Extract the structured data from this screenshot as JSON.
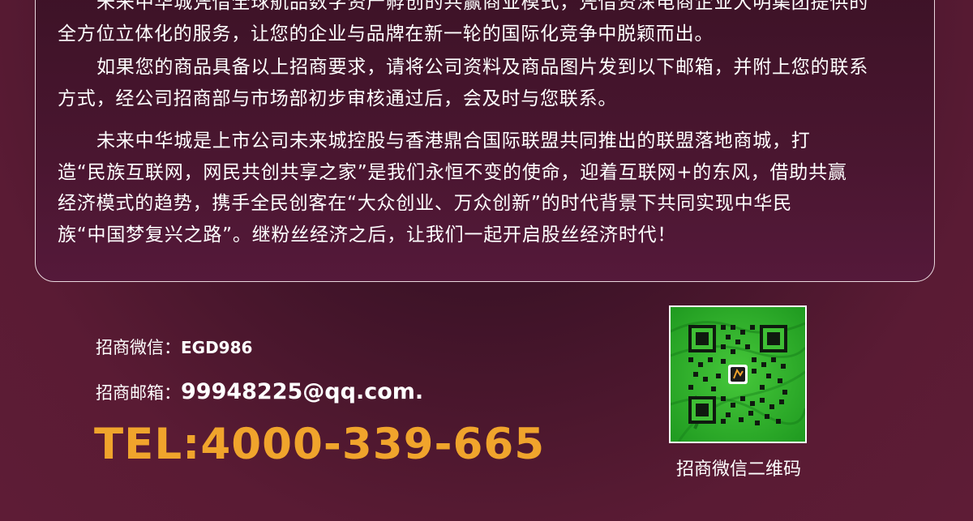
{
  "intro": {
    "paragraph1_line1": "未来中华城凭借全球航品数字资产孵创的共赢商业模式，凭借资深电商企业大明集团提供的",
    "paragraph1_line2": "全方位立体化的服务，让您的企业与品牌在新一轮的国际化竞争中脱颖而出。",
    "paragraph2_line1": "如果您的商品具备以上招商要求，请将公司资料及商品图片发到以下邮箱，并附上您的联系",
    "paragraph2_line2": "方式，经公司招商部与市场部初步审核通过后，会及时与您联系。",
    "paragraph3_line1": "未来中华城是上市公司未来城控股与香港鼎合国际联盟共同推出的联盟落地商城，打",
    "paragraph3_line2": "造“民族互联网，网民共创共享之家”是我们永恒不变的使命，迎着互联网+的东风，借助共赢",
    "paragraph3_line3": "经济模式的趋势，携手全民创客在“大众创业、万众创新”的时代背景下共同实现中华民",
    "paragraph3_line4": "族“中国梦复兴之路”。继粉丝经济之后，让我们一起开启股丝经济时代！"
  },
  "contact": {
    "wechat_label": "招商微信：",
    "wechat_value": "EGD986",
    "email_label": "招商邮箱：",
    "email_value": "99948225@qq.com.",
    "tel": "TEL:4000-339-665"
  },
  "qr": {
    "caption": "招商微信二维码"
  },
  "colors": {
    "accent": "#f0a42c",
    "qr_green": "#2fb52a",
    "background": "#5a1b34"
  }
}
